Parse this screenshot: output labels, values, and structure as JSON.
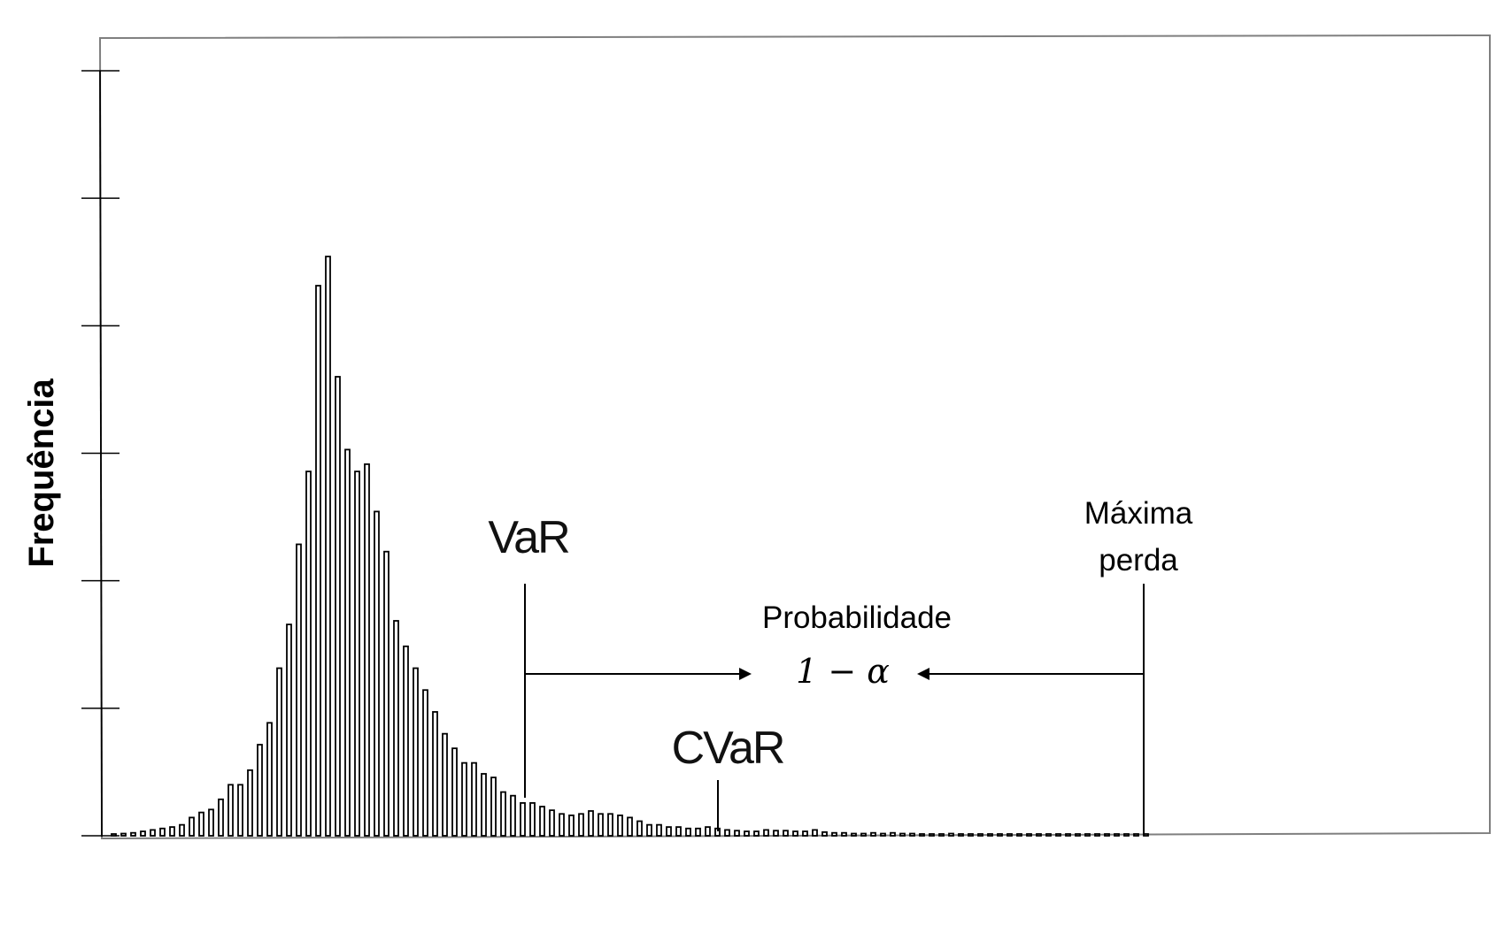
{
  "chart_data": {
    "type": "bar",
    "title": "",
    "xlabel": "",
    "ylabel": "Frequência",
    "y_ticks_labeled": false,
    "grid": false,
    "ylim": [
      0,
      105
    ],
    "values": [
      0.2,
      0.3,
      0.4,
      0.6,
      0.8,
      1,
      1.2,
      1.5,
      2.5,
      3.2,
      3.6,
      5,
      7,
      7,
      9,
      12.5,
      15.5,
      23,
      29,
      40,
      50,
      75.5,
      79.5,
      63,
      53,
      50,
      51,
      44.5,
      39,
      29.5,
      26,
      23,
      20,
      17,
      14,
      12,
      10,
      10,
      8.5,
      8,
      6,
      5.5,
      4.5,
      4.5,
      4,
      3.5,
      3,
      2.8,
      3,
      3.4,
      3,
      3,
      2.8,
      2.5,
      2,
      1.5,
      1.5,
      1.2,
      1.2,
      1,
      1,
      1.2,
      1,
      0.8,
      0.7,
      0.6,
      0.6,
      0.8,
      0.7,
      0.7,
      0.6,
      0.6,
      0.8,
      0.5,
      0.4,
      0.4,
      0.3,
      0.3,
      0.4,
      0.3,
      0.4,
      0.3,
      0.3,
      0.2,
      0.2,
      0.2,
      0.3,
      0.2,
      0.2,
      0.2,
      0.2,
      0.1,
      0.2,
      0.2,
      0.2,
      0.1,
      0.1,
      0.2,
      0.2,
      0.1,
      0.1,
      0.1,
      0.1,
      0.1,
      0.1,
      0.1,
      0.1
    ],
    "annotations": {
      "var_label": "VaR",
      "cvar_label": "CVaR",
      "max_loss_line1": "Máxima",
      "max_loss_line2": "perda",
      "probability_label": "Probabilidade",
      "probability_expr": "1 − α"
    }
  }
}
